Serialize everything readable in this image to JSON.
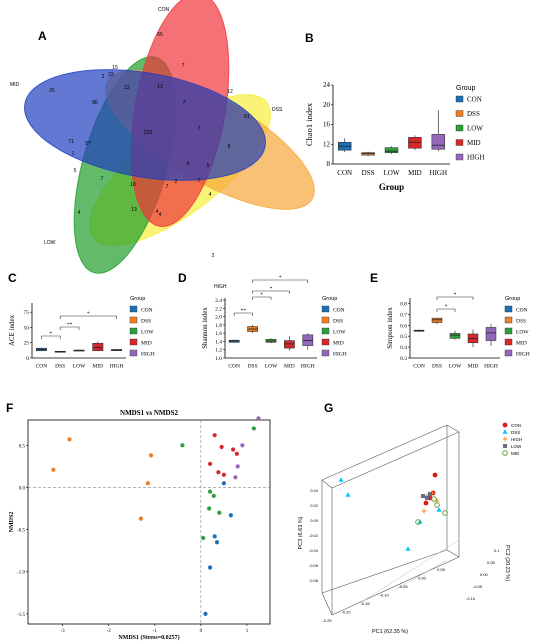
{
  "panel_letters": [
    "A",
    "B",
    "C",
    "D",
    "E",
    "F",
    "G"
  ],
  "colors": {
    "CON": "#1f6fb5",
    "DSS": "#ee7d23",
    "LOW": "#2e9e3e",
    "MID": "#d7272a",
    "HIGH": "#9467bd"
  },
  "chart_data": [
    {
      "panel": "A",
      "type": "venn",
      "sets": [
        "CON",
        "DSS",
        "HIGH",
        "LOW",
        "MID"
      ],
      "set_colors": {
        "CON": "#f0353b",
        "DSS": "#f6a637",
        "HIGH": "#f7ef3a",
        "LOW": "#1f9c2b",
        "MID": "#1f3fbf"
      },
      "region_counts": [
        "65",
        "7",
        "51",
        "12",
        "8",
        "4",
        "4",
        "4",
        "2",
        "2",
        "26",
        "86",
        "12",
        "13",
        "7",
        "15",
        "22",
        "57",
        "5",
        "7",
        "18",
        "7",
        "2",
        "9",
        "5",
        "13",
        "4",
        "71",
        "1",
        "223",
        "7",
        "7"
      ]
    },
    {
      "panel": "B",
      "type": "box",
      "ylabel": "Chao1 index",
      "xlabel": "Group",
      "categories": [
        "CON",
        "DSS",
        "LOW",
        "MID",
        "HIGH"
      ],
      "yticks": [
        "8",
        "12",
        "16",
        "20",
        "24"
      ],
      "ylim": [
        8,
        24
      ],
      "boxes": [
        {
          "group": "CON",
          "min": 10.4,
          "q1": 10.8,
          "median": 11.6,
          "q3": 12.4,
          "max": 13.2
        },
        {
          "group": "DSS",
          "min": 9.6,
          "q1": 9.8,
          "median": 10.1,
          "q3": 10.3,
          "max": 10.5
        },
        {
          "group": "LOW",
          "min": 10.0,
          "q1": 10.3,
          "median": 10.6,
          "q3": 11.3,
          "max": 11.6
        },
        {
          "group": "MID",
          "min": 10.8,
          "q1": 11.2,
          "median": 12.4,
          "q3": 13.4,
          "max": 13.8
        },
        {
          "group": "HIGH",
          "min": 10.6,
          "q1": 11.0,
          "median": 11.8,
          "q3": 14.0,
          "max": 18.9
        }
      ],
      "legend_title": "Group",
      "legend": [
        "CON",
        "DSS",
        "LOW",
        "MID",
        "HIGH"
      ]
    },
    {
      "panel": "C",
      "type": "box",
      "ylabel": "ACE index",
      "categories": [
        "CON",
        "DSS",
        "LOW",
        "MID",
        "HIGH"
      ],
      "yticks": [
        "0",
        "25",
        "50",
        "75"
      ],
      "ylim": [
        0,
        90
      ],
      "boxes": [
        {
          "group": "CON",
          "min": 11,
          "q1": 12,
          "median": 14,
          "q3": 16,
          "max": 17
        },
        {
          "group": "DSS",
          "min": 9.5,
          "q1": 10,
          "median": 10.5,
          "q3": 11,
          "max": 11.5
        },
        {
          "group": "LOW",
          "min": 11,
          "q1": 11.5,
          "median": 12,
          "q3": 13,
          "max": 13.5
        },
        {
          "group": "MID",
          "min": 11,
          "q1": 12,
          "median": 17,
          "q3": 24,
          "max": 27
        },
        {
          "group": "HIGH",
          "min": 11.5,
          "q1": 12,
          "median": 13,
          "q3": 14,
          "max": 15
        }
      ],
      "significance": [
        "*",
        "**",
        "*"
      ],
      "legend_title": "Group",
      "legend": [
        "CON",
        "DSS",
        "LOW",
        "MID",
        "HIGH"
      ]
    },
    {
      "panel": "D",
      "type": "box",
      "ylabel": "Shannon index",
      "categories": [
        "CON",
        "DSS",
        "LOW",
        "MID",
        "HIGH"
      ],
      "yticks": [
        "1.0",
        "1.2",
        "1.4",
        "1.6",
        "1.8",
        "2.0",
        "2.2",
        "2.4"
      ],
      "ylim": [
        1.0,
        2.45
      ],
      "boxes": [
        {
          "group": "CON",
          "min": 1.37,
          "q1": 1.38,
          "median": 1.41,
          "q3": 1.43,
          "max": 1.44
        },
        {
          "group": "DSS",
          "min": 1.6,
          "q1": 1.64,
          "median": 1.7,
          "q3": 1.76,
          "max": 1.8
        },
        {
          "group": "LOW",
          "min": 1.36,
          "q1": 1.38,
          "median": 1.41,
          "q3": 1.45,
          "max": 1.48
        },
        {
          "group": "MID",
          "min": 1.18,
          "q1": 1.24,
          "median": 1.34,
          "q3": 1.42,
          "max": 1.52
        },
        {
          "group": "HIGH",
          "min": 1.2,
          "q1": 1.3,
          "median": 1.42,
          "q3": 1.56,
          "max": 1.6
        }
      ],
      "significance": [
        "**",
        "*",
        "*",
        "*"
      ],
      "legend_title": "Group",
      "legend": [
        "CON",
        "DSS",
        "LOW",
        "MID",
        "HIGH"
      ]
    },
    {
      "panel": "E",
      "type": "box",
      "ylabel": "Simpson index",
      "categories": [
        "CON",
        "DSS",
        "LOW",
        "MID",
        "HIGH"
      ],
      "yticks": [
        "0.3",
        "0.4",
        "0.5",
        "0.6",
        "0.7",
        "0.8"
      ],
      "ylim": [
        0.3,
        0.85
      ],
      "boxes": [
        {
          "group": "CON",
          "min": 0.54,
          "q1": 0.545,
          "median": 0.55,
          "q3": 0.555,
          "max": 0.56
        },
        {
          "group": "DSS",
          "min": 0.61,
          "q1": 0.625,
          "median": 0.65,
          "q3": 0.665,
          "max": 0.67
        },
        {
          "group": "LOW",
          "min": 0.47,
          "q1": 0.48,
          "median": 0.51,
          "q3": 0.525,
          "max": 0.55
        },
        {
          "group": "MID",
          "min": 0.4,
          "q1": 0.44,
          "median": 0.48,
          "q3": 0.52,
          "max": 0.56
        },
        {
          "group": "HIGH",
          "min": 0.41,
          "q1": 0.46,
          "median": 0.53,
          "q3": 0.58,
          "max": 0.61
        }
      ],
      "significance": [
        "*",
        "*"
      ],
      "legend_title": "Group",
      "legend": [
        "CON",
        "DSS",
        "LOW",
        "MID",
        "HIGH"
      ]
    },
    {
      "panel": "F",
      "type": "scatter",
      "title": "NMDS1 vs NMDS2",
      "xlabel": "NMDS1 (Stress=0.0257)",
      "ylabel": "NMDS2",
      "xticks": [
        "-3",
        "-2",
        "-1",
        "0",
        "1"
      ],
      "yticks": [
        "0.5",
        "0.0",
        "-0.5",
        "-1.0",
        "-1.5"
      ],
      "xlim": [
        -3.75,
        1.5
      ],
      "ylim": [
        -1.62,
        0.8
      ],
      "series": [
        {
          "name": "DSS",
          "points": [
            [
              -3.2,
              0.21
            ],
            [
              -2.85,
              0.57
            ],
            [
              -1.15,
              0.05
            ],
            [
              -1.3,
              -0.37
            ],
            [
              -1.08,
              0.38
            ]
          ]
        },
        {
          "name": "HIGH",
          "points": [
            [
              1.25,
              0.82
            ],
            [
              0.9,
              0.5
            ],
            [
              0.8,
              0.25
            ],
            [
              0.75,
              0.12
            ]
          ]
        },
        {
          "name": "MID",
          "points": [
            [
              0.45,
              0.48
            ],
            [
              0.7,
              0.45
            ],
            [
              0.78,
              0.4
            ],
            [
              0.38,
              0.18
            ],
            [
              0.5,
              0.15
            ],
            [
              0.2,
              0.28
            ],
            [
              0.3,
              0.62
            ]
          ]
        },
        {
          "name": "LOW",
          "points": [
            [
              -0.4,
              0.5
            ],
            [
              1.15,
              0.7
            ],
            [
              0.2,
              -0.05
            ],
            [
              0.18,
              -0.25
            ],
            [
              0.4,
              -0.3
            ],
            [
              0.05,
              -0.6
            ],
            [
              0.28,
              -0.1
            ]
          ]
        },
        {
          "name": "CON",
          "points": [
            [
              0.65,
              -0.33
            ],
            [
              0.3,
              -0.58
            ],
            [
              0.35,
              -0.65
            ],
            [
              0.2,
              -0.95
            ],
            [
              0.1,
              -1.5
            ],
            [
              0.5,
              0.05
            ]
          ]
        }
      ]
    },
    {
      "panel": "G",
      "type": "scatter3d",
      "xlabel": "PC1 (62.35 %)",
      "ylabel": "PC2 (20.23 %)",
      "zlabel": "PC3 (6.63 %)",
      "x_ticks": [
        "-0.25",
        "-0.20",
        "-0.15",
        "-0.10",
        "-0.05",
        "0.00",
        "0.05"
      ],
      "y_ticks": [
        "-0.10",
        "-0.05",
        "0.00",
        "0.05",
        "0.1"
      ],
      "z_ticks": [
        "0.04",
        "0.02",
        "0.00",
        "-0.02",
        "-0.04",
        "-0.06",
        "-0.08"
      ],
      "legend": [
        {
          "name": "CON",
          "marker": "dot"
        },
        {
          "name": "DSS",
          "marker": "triangle"
        },
        {
          "name": "HIGH",
          "marker": "plus"
        },
        {
          "name": "LOW",
          "marker": "square"
        },
        {
          "name": "MID",
          "marker": "ring"
        }
      ]
    }
  ]
}
